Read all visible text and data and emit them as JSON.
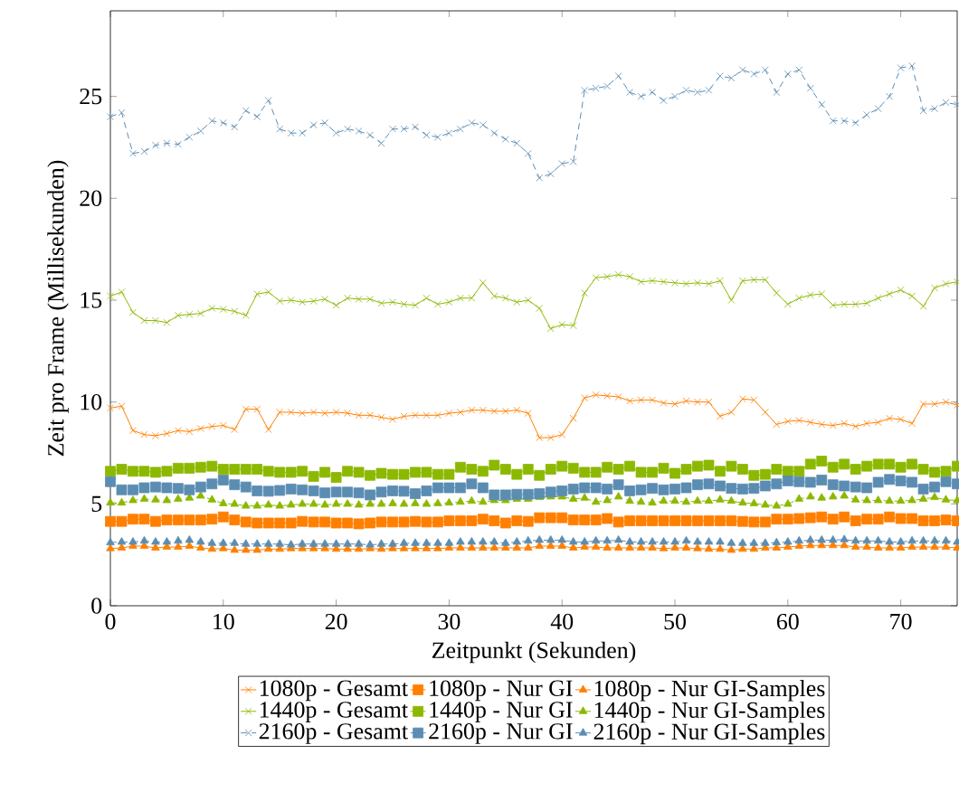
{
  "chart_data": {
    "type": "line",
    "xlabel": "Zeitpunkt (Sekunden)",
    "ylabel": "Zeit pro Frame (Millisekunden)",
    "x": [
      0,
      1,
      2,
      3,
      4,
      5,
      6,
      7,
      8,
      9,
      10,
      11,
      12,
      13,
      14,
      15,
      16,
      17,
      18,
      19,
      20,
      21,
      22,
      23,
      24,
      25,
      26,
      27,
      28,
      29,
      30,
      31,
      32,
      33,
      34,
      35,
      36,
      37,
      38,
      39,
      40,
      41,
      42,
      43,
      44,
      45,
      46,
      47,
      48,
      49,
      50,
      51,
      52,
      53,
      54,
      55,
      56,
      57,
      58,
      59,
      60,
      61,
      62,
      63,
      64,
      65,
      66,
      67,
      68,
      69,
      70,
      71,
      72,
      73,
      74,
      75
    ],
    "xlim": [
      0,
      75
    ],
    "ylim": [
      0,
      29.2
    ],
    "xticks": [
      0,
      10,
      20,
      30,
      40,
      50,
      60,
      70
    ],
    "yticks": [
      0,
      5,
      10,
      15,
      20,
      25
    ],
    "legend": "bottom",
    "series": [
      {
        "name": "1080p - Gesamt",
        "color": "#ff7f00",
        "marker": "cross",
        "line_style": "solid",
        "values": [
          9.7,
          9.8,
          8.6,
          8.4,
          8.35,
          8.45,
          8.6,
          8.55,
          8.7,
          8.8,
          8.85,
          8.65,
          9.65,
          9.65,
          8.65,
          9.5,
          9.5,
          9.45,
          9.5,
          9.45,
          9.5,
          9.45,
          9.35,
          9.35,
          9.25,
          9.15,
          9.3,
          9.35,
          9.35,
          9.35,
          9.45,
          9.5,
          9.6,
          9.6,
          9.55,
          9.55,
          9.6,
          9.45,
          8.25,
          8.25,
          8.4,
          9.2,
          10.2,
          10.35,
          10.3,
          10.25,
          10.05,
          10.1,
          10.1,
          9.95,
          9.9,
          10.05,
          10.0,
          10.0,
          9.3,
          9.5,
          10.15,
          10.1,
          9.5,
          8.9,
          9.05,
          9.1,
          9.0,
          8.9,
          8.85,
          8.95,
          8.8,
          8.95,
          9.0,
          9.2,
          9.15,
          8.95,
          9.9,
          9.9,
          10.0,
          9.85
        ]
      },
      {
        "name": "1080p - Nur GI",
        "color": "#ff7f00",
        "marker": "square",
        "line_style": "solid",
        "values": [
          4.14,
          4.14,
          4.25,
          4.25,
          4.14,
          4.21,
          4.21,
          4.21,
          4.21,
          4.25,
          4.36,
          4.21,
          4.11,
          4.06,
          4.06,
          4.06,
          4.06,
          4.14,
          4.11,
          4.11,
          4.06,
          4.06,
          4.02,
          4.06,
          4.11,
          4.11,
          4.11,
          4.14,
          4.11,
          4.11,
          4.17,
          4.17,
          4.17,
          4.25,
          4.17,
          4.06,
          4.17,
          4.14,
          4.32,
          4.32,
          4.32,
          4.21,
          4.21,
          4.21,
          4.28,
          4.11,
          4.17,
          4.17,
          4.17,
          4.17,
          4.17,
          4.17,
          4.17,
          4.17,
          4.17,
          4.17,
          4.14,
          4.11,
          4.11,
          4.25,
          4.25,
          4.28,
          4.32,
          4.36,
          4.25,
          4.36,
          4.17,
          4.25,
          4.25,
          4.36,
          4.28,
          4.28,
          4.17,
          4.17,
          4.21,
          4.17
        ]
      },
      {
        "name": "1080p - Nur GI-Samples",
        "color": "#ff7f00",
        "marker": "triangle",
        "line_style": "solid",
        "values": [
          2.81,
          2.84,
          2.93,
          2.93,
          2.84,
          2.88,
          2.88,
          2.93,
          2.84,
          2.78,
          2.81,
          2.73,
          2.73,
          2.73,
          2.78,
          2.78,
          2.81,
          2.81,
          2.81,
          2.81,
          2.78,
          2.78,
          2.78,
          2.81,
          2.78,
          2.81,
          2.81,
          2.81,
          2.81,
          2.81,
          2.84,
          2.84,
          2.84,
          2.84,
          2.84,
          2.84,
          2.84,
          2.84,
          2.93,
          2.93,
          2.93,
          2.84,
          2.88,
          2.88,
          2.84,
          2.84,
          2.84,
          2.84,
          2.84,
          2.81,
          2.84,
          2.84,
          2.81,
          2.78,
          2.78,
          2.73,
          2.78,
          2.78,
          2.84,
          2.84,
          2.88,
          2.93,
          2.96,
          2.96,
          2.96,
          2.96,
          2.88,
          2.88,
          2.84,
          2.84,
          2.84,
          2.88,
          2.88,
          2.88,
          2.88,
          2.84
        ]
      },
      {
        "name": "1440p - Gesamt",
        "color": "#8cb800",
        "marker": "cross",
        "line_style": "solid",
        "values": [
          15.2,
          15.4,
          14.4,
          14.0,
          14.0,
          13.9,
          14.25,
          14.3,
          14.35,
          14.6,
          14.55,
          14.45,
          14.25,
          15.3,
          15.4,
          14.95,
          15.0,
          14.9,
          14.95,
          15.05,
          14.75,
          15.1,
          15.05,
          15.05,
          14.85,
          14.9,
          14.8,
          14.75,
          15.1,
          14.8,
          14.9,
          15.1,
          15.1,
          15.85,
          15.2,
          15.1,
          14.9,
          15.0,
          14.6,
          13.6,
          13.8,
          13.75,
          15.35,
          16.1,
          16.15,
          16.25,
          16.15,
          15.9,
          15.95,
          15.9,
          15.85,
          15.8,
          15.85,
          15.8,
          15.95,
          15.0,
          15.95,
          16.0,
          16.0,
          15.35,
          14.8,
          15.1,
          15.25,
          15.3,
          14.75,
          14.8,
          14.8,
          14.85,
          15.1,
          15.3,
          15.5,
          15.2,
          14.7,
          15.6,
          15.8,
          15.9
        ]
      },
      {
        "name": "1440p - Nur GI",
        "color": "#8cb800",
        "marker": "square",
        "line_style": "solid",
        "values": [
          6.6,
          6.7,
          6.6,
          6.6,
          6.55,
          6.6,
          6.75,
          6.75,
          6.8,
          6.85,
          6.7,
          6.7,
          6.7,
          6.7,
          6.6,
          6.55,
          6.55,
          6.6,
          6.35,
          6.55,
          6.3,
          6.6,
          6.55,
          6.4,
          6.5,
          6.45,
          6.45,
          6.55,
          6.55,
          6.45,
          6.45,
          6.8,
          6.7,
          6.6,
          6.9,
          6.7,
          6.45,
          6.7,
          6.4,
          6.7,
          6.85,
          6.75,
          6.55,
          6.55,
          6.8,
          6.7,
          6.85,
          6.55,
          6.55,
          6.75,
          6.5,
          6.7,
          6.85,
          6.9,
          6.6,
          6.85,
          6.7,
          6.4,
          6.45,
          6.7,
          6.6,
          6.6,
          6.95,
          7.1,
          6.8,
          6.95,
          6.7,
          6.85,
          6.95,
          6.95,
          6.8,
          6.95,
          6.7,
          6.55,
          6.6,
          6.85
        ]
      },
      {
        "name": "1440p - Nur GI-Samples",
        "color": "#8cb800",
        "marker": "triangle",
        "line_style": "dashed",
        "values": [
          5.05,
          5.05,
          5.17,
          5.24,
          5.2,
          5.17,
          5.24,
          5.29,
          5.39,
          5.2,
          5.02,
          4.99,
          4.9,
          4.9,
          4.95,
          4.9,
          4.95,
          4.99,
          4.99,
          4.95,
          4.99,
          4.99,
          4.95,
          4.99,
          4.99,
          5.02,
          4.99,
          5.02,
          4.99,
          5.02,
          5.05,
          5.09,
          5.14,
          5.09,
          5.17,
          5.17,
          5.24,
          5.24,
          5.32,
          5.35,
          5.35,
          5.24,
          5.29,
          5.09,
          5.17,
          5.35,
          5.14,
          5.09,
          5.05,
          5.14,
          5.14,
          5.09,
          5.14,
          5.14,
          5.2,
          5.14,
          5.05,
          5.02,
          4.95,
          4.9,
          4.99,
          5.24,
          5.35,
          5.29,
          5.35,
          5.39,
          5.2,
          5.17,
          5.17,
          5.14,
          5.14,
          5.17,
          5.24,
          5.32,
          5.2,
          5.17
        ]
      },
      {
        "name": "2160p - Gesamt",
        "color": "#5b8db3",
        "marker": "cross",
        "line_style": "dashed",
        "values": [
          24.0,
          24.2,
          22.2,
          22.3,
          22.6,
          22.7,
          22.65,
          23.0,
          23.3,
          23.8,
          23.7,
          23.5,
          24.3,
          24.0,
          24.8,
          23.4,
          23.2,
          23.2,
          23.6,
          23.7,
          23.2,
          23.4,
          23.3,
          23.1,
          22.7,
          23.4,
          23.4,
          23.5,
          23.1,
          23.0,
          23.2,
          23.4,
          23.7,
          23.6,
          23.2,
          22.9,
          22.7,
          22.2,
          21.0,
          21.2,
          21.7,
          21.8,
          25.3,
          25.4,
          25.5,
          26.0,
          25.2,
          25.0,
          25.2,
          24.8,
          25.0,
          25.3,
          25.2,
          25.3,
          26.0,
          25.9,
          26.3,
          26.1,
          26.3,
          25.2,
          26.1,
          26.3,
          25.4,
          24.6,
          23.8,
          23.8,
          23.7,
          24.1,
          24.4,
          25.0,
          26.4,
          26.5,
          24.3,
          24.4,
          24.7,
          24.6
        ]
      },
      {
        "name": "2160p - Nur GI",
        "color": "#5b8db3",
        "marker": "square",
        "line_style": "dashed",
        "values": [
          6.09,
          5.69,
          5.69,
          5.79,
          5.83,
          5.79,
          5.76,
          5.69,
          5.83,
          5.98,
          6.17,
          5.94,
          5.83,
          5.64,
          5.62,
          5.66,
          5.73,
          5.69,
          5.64,
          5.54,
          5.58,
          5.58,
          5.54,
          5.44,
          5.58,
          5.64,
          5.62,
          5.5,
          5.64,
          5.79,
          5.79,
          5.79,
          5.98,
          5.79,
          5.44,
          5.44,
          5.47,
          5.47,
          5.5,
          5.58,
          5.64,
          5.73,
          5.79,
          5.79,
          5.73,
          5.94,
          5.64,
          5.69,
          5.76,
          5.69,
          5.73,
          5.79,
          5.94,
          5.98,
          5.88,
          5.76,
          5.73,
          5.76,
          5.88,
          5.98,
          6.13,
          6.09,
          6.06,
          6.17,
          5.94,
          5.88,
          5.83,
          5.79,
          6.06,
          6.2,
          6.13,
          6.06,
          5.73,
          5.83,
          6.09,
          5.98
        ]
      },
      {
        "name": "2160p - Nur GI-Samples",
        "color": "#5b8db3",
        "marker": "triangle",
        "line_style": "dashed",
        "values": [
          3.1,
          3.13,
          3.13,
          3.18,
          3.13,
          3.13,
          3.18,
          3.22,
          3.13,
          3.07,
          3.07,
          3.07,
          3.03,
          3.03,
          3.03,
          3.03,
          2.99,
          3.03,
          3.03,
          3.03,
          3.03,
          3.03,
          3.03,
          2.99,
          3.03,
          3.03,
          3.07,
          3.07,
          3.07,
          3.07,
          3.07,
          3.13,
          3.13,
          3.13,
          3.13,
          3.07,
          3.13,
          3.18,
          3.22,
          3.22,
          3.22,
          3.13,
          3.13,
          3.18,
          3.18,
          3.22,
          3.13,
          3.13,
          3.13,
          3.13,
          3.13,
          3.18,
          3.13,
          3.13,
          3.13,
          3.07,
          3.07,
          3.07,
          3.07,
          3.1,
          3.13,
          3.18,
          3.22,
          3.22,
          3.22,
          3.25,
          3.18,
          3.18,
          3.18,
          3.13,
          3.13,
          3.18,
          3.18,
          3.18,
          3.18,
          3.13
        ]
      }
    ]
  }
}
